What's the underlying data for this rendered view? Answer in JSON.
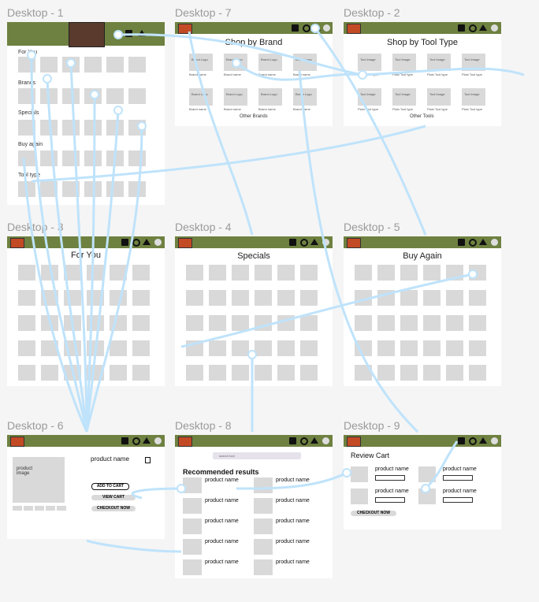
{
  "frames": {
    "d1": {
      "label": "Desktop - 1"
    },
    "d7": {
      "label": "Desktop - 7",
      "title": "Shop by Brand",
      "tile_label": "Brand Logo",
      "sub_label": "Brand name",
      "footer": "Other Brands"
    },
    "d2": {
      "label": "Desktop - 2",
      "title": "Shop by Tool Type",
      "tile_label": "Tool Image",
      "sub_label": "Plain Tool type",
      "footer": "Other Tools"
    },
    "d3": {
      "label": "Desktop - 3",
      "title": "For You"
    },
    "d4": {
      "label": "Desktop - 4",
      "title": "Specials"
    },
    "d5": {
      "label": "Desktop - 5",
      "title": "Buy Again"
    },
    "d6": {
      "label": "Desktop - 6",
      "product_image": "product\nimage",
      "product_name": "product name",
      "add_to_cart": "ADD TO CART",
      "view_cart": "VIEW CART",
      "checkout": "CHECKOUT NOW"
    },
    "d8": {
      "label": "Desktop - 8",
      "heading": "Recommended results",
      "product_name": "product name",
      "search_placeholder": "search tool"
    },
    "d9": {
      "label": "Desktop - 9",
      "heading": "Review Cart",
      "product_name": "product name",
      "checkout": "CHECKOUT NOW"
    }
  },
  "d1_sections": [
    "For You",
    "Brands",
    "Specials",
    "Buy again",
    "Tool type"
  ],
  "colors": {
    "header": "#6e8140",
    "wire": "#bfe3fb",
    "placeholder": "#d9d9d9"
  }
}
